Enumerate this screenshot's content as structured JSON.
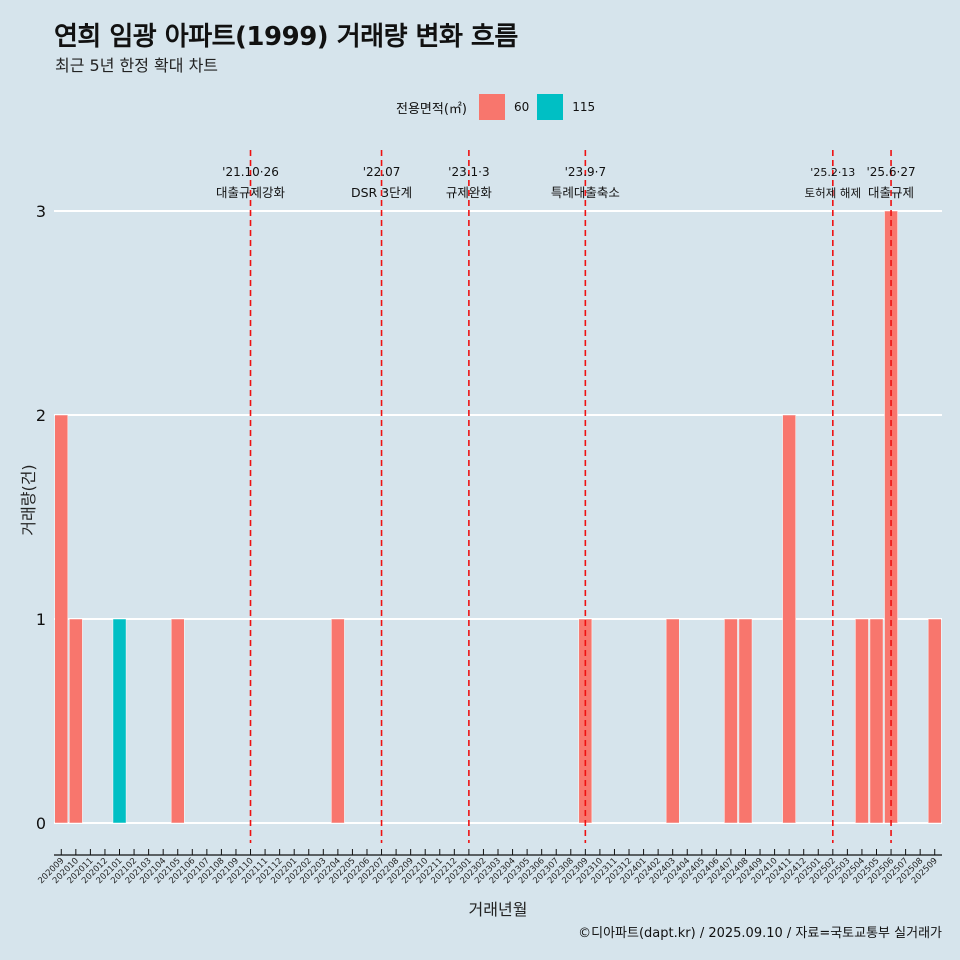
{
  "title": "연희 임광 아파트(1999) 거래량 변화 흐름",
  "subtitle": "최근 5년 한정 확대 차트",
  "caption": "©디아파트(dapt.kr) / 2025.09.10 / 자료=국토교통부 실거래가",
  "legend": {
    "title": "전용면적(㎡)",
    "items": [
      {
        "label": "60",
        "color": "#f8766d"
      },
      {
        "label": "115",
        "color": "#00bfc4"
      }
    ]
  },
  "chart_data": {
    "type": "bar",
    "xlabel": "거래년월",
    "ylabel": "거래량(건)",
    "ylim": [
      0,
      3
    ],
    "yticks": [
      0,
      1,
      2,
      3
    ],
    "grid": "horizontal",
    "legend_position": "top",
    "categories": [
      "202009",
      "202010",
      "202011",
      "202012",
      "202101",
      "202102",
      "202103",
      "202104",
      "202105",
      "202106",
      "202107",
      "202108",
      "202109",
      "202110",
      "202111",
      "202112",
      "202201",
      "202202",
      "202203",
      "202204",
      "202205",
      "202206",
      "202207",
      "202208",
      "202209",
      "202210",
      "202211",
      "202212",
      "202301",
      "202302",
      "202303",
      "202304",
      "202305",
      "202306",
      "202307",
      "202308",
      "202309",
      "202310",
      "202311",
      "202312",
      "202401",
      "202402",
      "202403",
      "202404",
      "202405",
      "202406",
      "202407",
      "202408",
      "202409",
      "202410",
      "202411",
      "202412",
      "202501",
      "202502",
      "202503",
      "202504",
      "202505",
      "202506",
      "202507",
      "202508",
      "202509"
    ],
    "series": [
      {
        "name": "60",
        "color": "#f8766d",
        "values": [
          2,
          1,
          0,
          0,
          0,
          0,
          0,
          0,
          1,
          0,
          0,
          0,
          0,
          0,
          0,
          0,
          0,
          0,
          0,
          1,
          0,
          0,
          0,
          0,
          0,
          0,
          0,
          0,
          0,
          0,
          0,
          0,
          0,
          0,
          0,
          0,
          1,
          0,
          0,
          0,
          0,
          0,
          1,
          0,
          0,
          0,
          1,
          1,
          0,
          0,
          2,
          0,
          0,
          0,
          0,
          1,
          1,
          3,
          0,
          0,
          1
        ]
      },
      {
        "name": "115",
        "color": "#00bfc4",
        "values": [
          0,
          0,
          0,
          0,
          1,
          0,
          0,
          0,
          0,
          0,
          0,
          0,
          0,
          0,
          0,
          0,
          0,
          0,
          0,
          0,
          0,
          0,
          0,
          0,
          0,
          0,
          0,
          0,
          0,
          0,
          0,
          0,
          0,
          0,
          0,
          0,
          0,
          0,
          0,
          0,
          0,
          0,
          0,
          0,
          0,
          0,
          0,
          0,
          0,
          0,
          0,
          0,
          0,
          0,
          0,
          0,
          0,
          0,
          0,
          0,
          0
        ]
      }
    ],
    "annotations": [
      {
        "x": "202110",
        "date": "'21.10·26",
        "label": "대출규제강화",
        "color": "#ee1111"
      },
      {
        "x": "202207",
        "date": "'22.07",
        "label": "DSR 3단계",
        "color": "#ee1111"
      },
      {
        "x": "202301",
        "date": "'23.1·3",
        "label": "규제완화",
        "color": "#ee1111"
      },
      {
        "x": "202309",
        "date": "'23.9·7",
        "label": "특례대출축소",
        "color": "#ee1111"
      },
      {
        "x": "202502",
        "date": "'25.2·13",
        "label": "토허제 해제",
        "color": "#ee1111"
      },
      {
        "x": "202506",
        "date": "'25.6·27",
        "label": "대출규제",
        "color": "#ee1111"
      }
    ]
  }
}
